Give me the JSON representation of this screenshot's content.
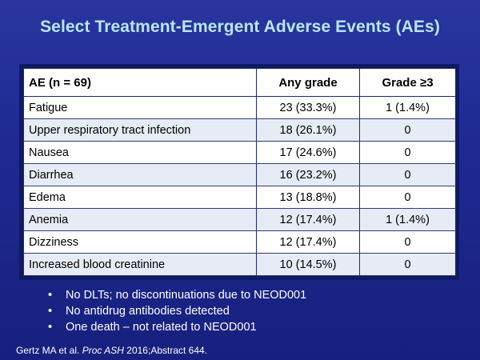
{
  "slide": {
    "title": "Select Treatment-Emergent Adverse Events (AEs)"
  },
  "table": {
    "headers": [
      "AE (n = 69)",
      "Any grade",
      "Grade ≥3"
    ],
    "rows": [
      [
        "Fatigue",
        "23 (33.3%)",
        "1 (1.4%)"
      ],
      [
        "Upper respiratory tract infection",
        "18 (26.1%)",
        "0"
      ],
      [
        "Nausea",
        "17 (24.6%)",
        "0"
      ],
      [
        "Diarrhea",
        "16 (23.2%)",
        "0"
      ],
      [
        "Edema",
        "13 (18.8%)",
        "0"
      ],
      [
        "Anemia",
        "12 (17.4%)",
        "1 (1.4%)"
      ],
      [
        "Dizziness",
        "12 (17.4%)",
        "0"
      ],
      [
        "Increased blood creatinine",
        "10 (14.5%)",
        "0"
      ]
    ]
  },
  "bullets": {
    "marker": "•",
    "items": [
      "No DLTs; no discontinuations due to NEOD001",
      "No antidrug antibodies detected",
      "One death – not related to NEOD001"
    ]
  },
  "citation": {
    "authors": "Gertz MA et al. ",
    "journal": "Proc ASH",
    "details": " 2016;Abstract 644."
  },
  "colors": {
    "background": "#1e2a92",
    "title": "#b9e6f7",
    "table_header_bg": "#ffffff",
    "row_alt_bg": "#e7ebf5"
  }
}
